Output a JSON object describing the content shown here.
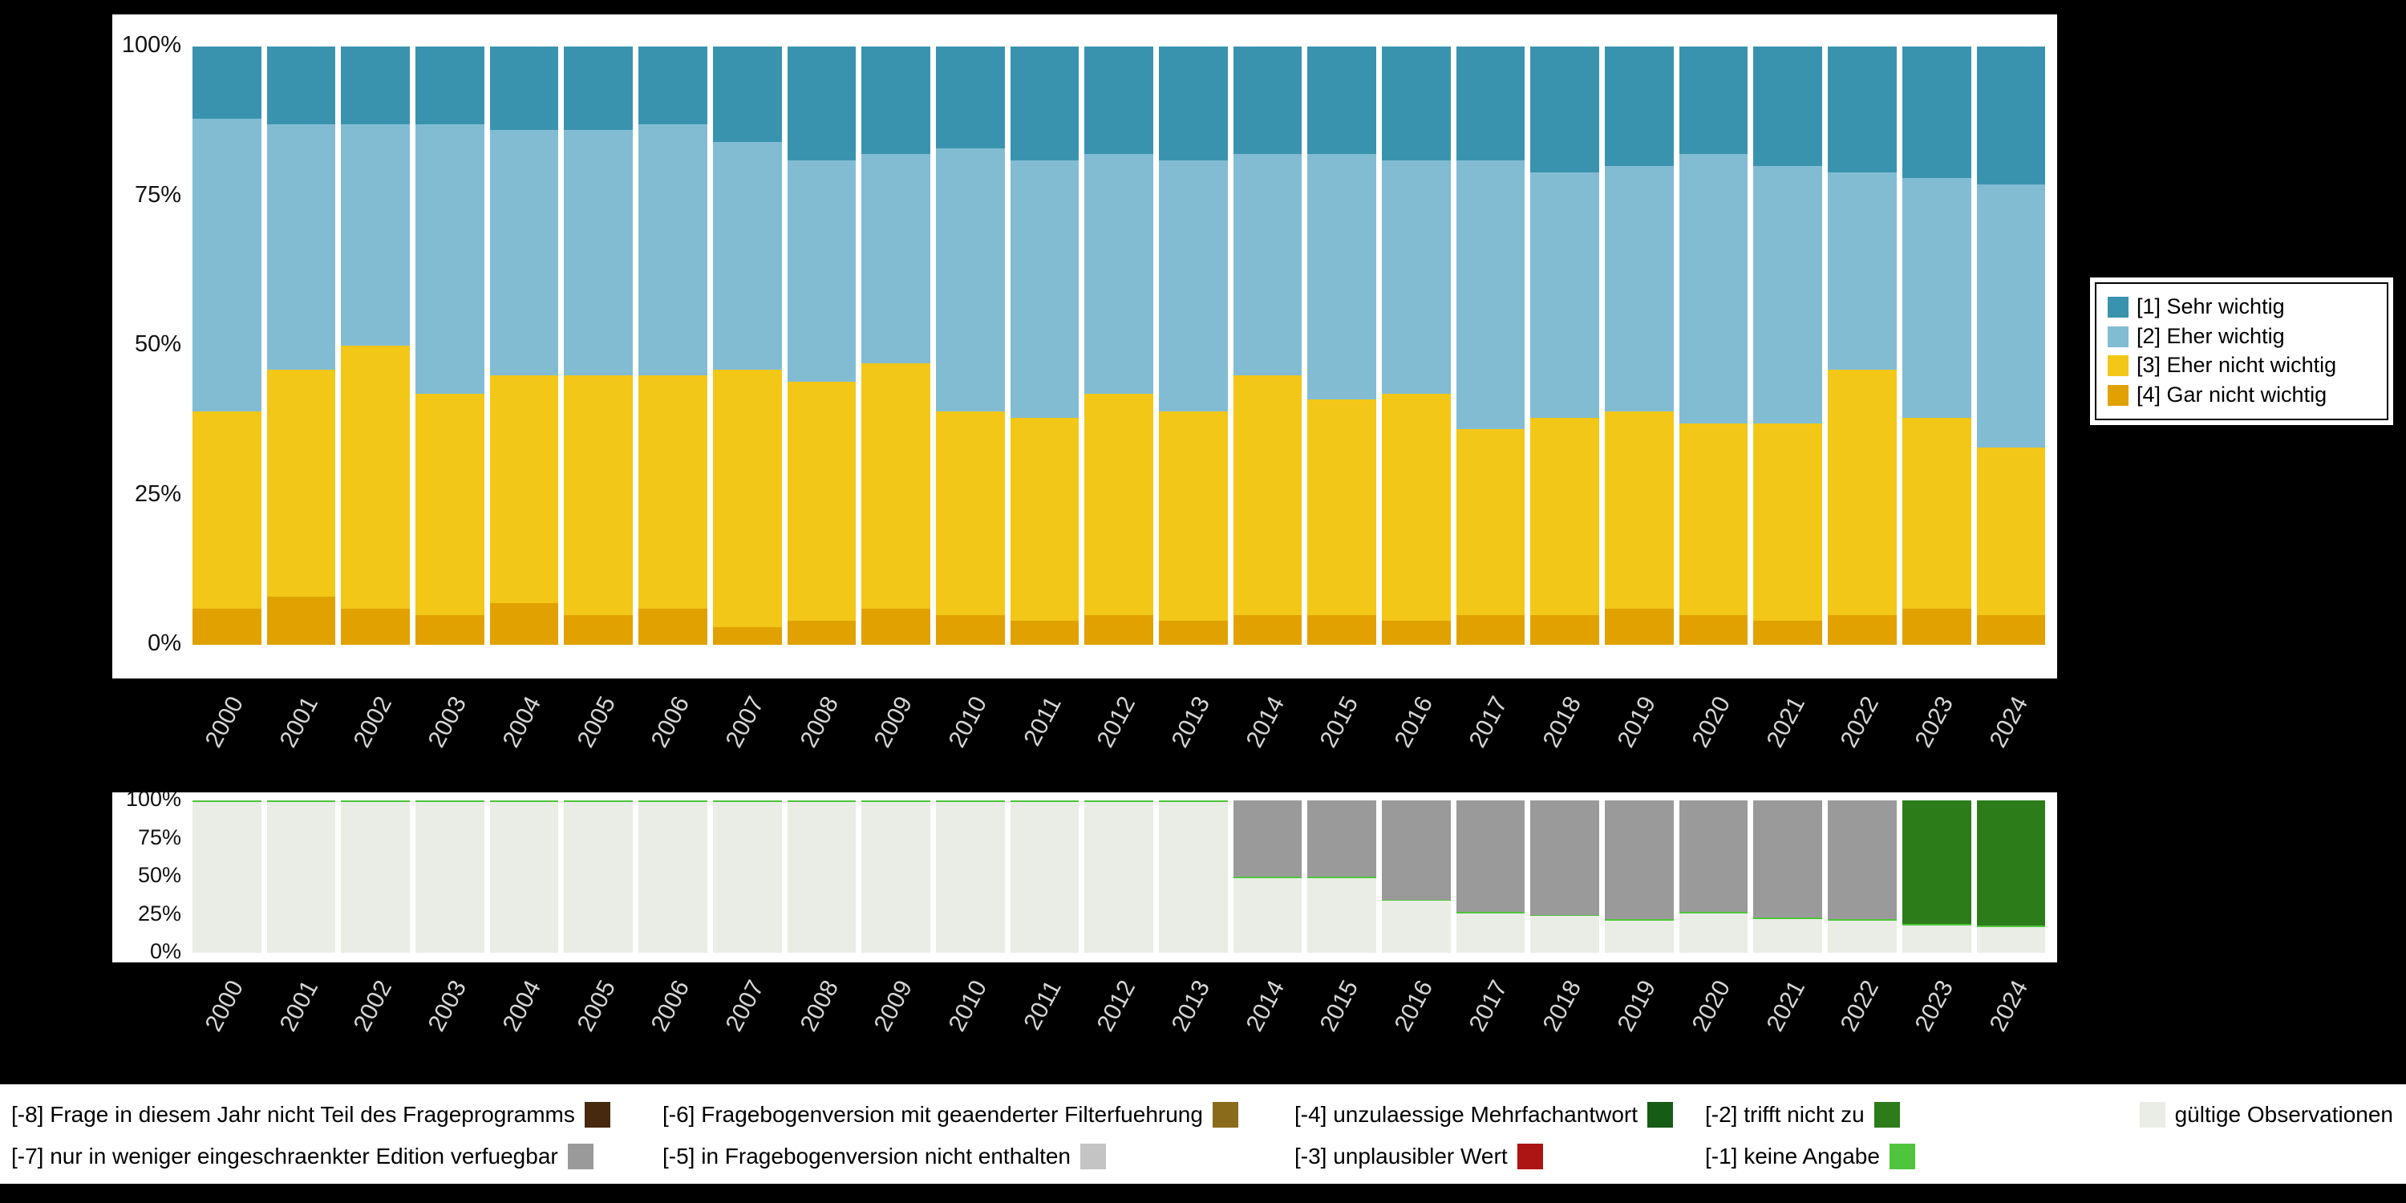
{
  "colors": {
    "background": "#000000",
    "panel": "#ffffff",
    "axis_year_text": "#d5d5d5",
    "axis_tick_text": "#111111",
    "sehr_wichtig": "#3a93ae",
    "eher_wichtig": "#82bcd3",
    "eher_nicht_wichtig": "#f2c718",
    "gar_nicht_wichtig": "#e1a100",
    "valid": "#e9ede5",
    "m8": "#47290f",
    "m7": "#9a9a9a",
    "m6": "#8a6b1c",
    "m5": "#c4c4c4",
    "m4": "#165b16",
    "m3": "#ad1414",
    "m2": "#2c7c19",
    "m1": "#4fc43c"
  },
  "years": [
    "2000",
    "2001",
    "2002",
    "2003",
    "2004",
    "2005",
    "2006",
    "2007",
    "2008",
    "2009",
    "2010",
    "2011",
    "2012",
    "2013",
    "2014",
    "2015",
    "2016",
    "2017",
    "2018",
    "2019",
    "2020",
    "2021",
    "2022",
    "2023",
    "2024"
  ],
  "chart_data": [
    {
      "type": "bar",
      "stacked": true,
      "title": "",
      "xlabel": "",
      "ylabel": "",
      "ylim": [
        0,
        100
      ],
      "grid": false,
      "legend_position": "right",
      "yticks": [
        "0%",
        "25%",
        "50%",
        "75%",
        "100%"
      ],
      "categories": [
        "2000",
        "2001",
        "2002",
        "2003",
        "2004",
        "2005",
        "2006",
        "2007",
        "2008",
        "2009",
        "2010",
        "2011",
        "2012",
        "2013",
        "2014",
        "2015",
        "2016",
        "2017",
        "2018",
        "2019",
        "2020",
        "2021",
        "2022",
        "2023",
        "2024"
      ],
      "series": [
        {
          "name": "[4] Gar nicht wichtig",
          "color_key": "gar_nicht_wichtig",
          "values": [
            6,
            8,
            6,
            5,
            7,
            5,
            6,
            3,
            4,
            6,
            5,
            4,
            5,
            4,
            5,
            5,
            4,
            5,
            5,
            6,
            5,
            4,
            5,
            6,
            5
          ]
        },
        {
          "name": "[3] Eher nicht wichtig",
          "color_key": "eher_nicht_wichtig",
          "values": [
            33,
            38,
            44,
            37,
            38,
            40,
            39,
            43,
            40,
            41,
            34,
            34,
            37,
            35,
            40,
            36,
            38,
            31,
            33,
            33,
            32,
            33,
            41,
            32,
            28
          ]
        },
        {
          "name": "[2] Eher wichtig",
          "color_key": "eher_wichtig",
          "values": [
            49,
            41,
            37,
            45,
            41,
            41,
            42,
            38,
            37,
            35,
            44,
            43,
            40,
            42,
            37,
            41,
            39,
            45,
            41,
            41,
            45,
            43,
            33,
            40,
            44
          ]
        },
        {
          "name": "[1] Sehr wichtig",
          "color_key": "sehr_wichtig",
          "values": [
            12,
            13,
            13,
            13,
            14,
            14,
            13,
            16,
            19,
            18,
            17,
            19,
            18,
            19,
            18,
            18,
            19,
            19,
            21,
            20,
            18,
            20,
            21,
            22,
            23
          ]
        }
      ]
    },
    {
      "type": "bar",
      "stacked": true,
      "title": "",
      "xlabel": "",
      "ylabel": "",
      "ylim": [
        0,
        100
      ],
      "grid": false,
      "legend_position": "bottom",
      "yticks": [
        "0%",
        "25%",
        "50%",
        "75%",
        "100%"
      ],
      "categories": [
        "2000",
        "2001",
        "2002",
        "2003",
        "2004",
        "2005",
        "2006",
        "2007",
        "2008",
        "2009",
        "2010",
        "2011",
        "2012",
        "2013",
        "2014",
        "2015",
        "2016",
        "2017",
        "2018",
        "2019",
        "2020",
        "2021",
        "2022",
        "2023",
        "2024"
      ],
      "series": [
        {
          "name": "gültige Observationen",
          "color_key": "valid",
          "values": [
            99,
            99,
            99,
            99,
            99,
            99,
            99,
            99,
            99,
            99,
            99,
            99,
            99,
            99,
            49,
            49,
            34,
            26,
            24,
            21,
            26,
            22,
            21,
            18,
            17
          ]
        },
        {
          "name": "[-1] keine Angabe",
          "color_key": "m1",
          "values": [
            1,
            1,
            1,
            1,
            1,
            1,
            1,
            1,
            1,
            1,
            1,
            1,
            1,
            1,
            1,
            1,
            1,
            1,
            1,
            1,
            1,
            1,
            1,
            1,
            1
          ]
        },
        {
          "name": "[-7] nur in weniger eingeschraenkter Edition verfuegbar",
          "color_key": "m7",
          "values": [
            0,
            0,
            0,
            0,
            0,
            0,
            0,
            0,
            0,
            0,
            0,
            0,
            0,
            0,
            50,
            50,
            65,
            73,
            75,
            78,
            73,
            77,
            78,
            0,
            0
          ]
        },
        {
          "name": "[-2] trifft nicht zu",
          "color_key": "m2",
          "values": [
            0,
            0,
            0,
            0,
            0,
            0,
            0,
            0,
            0,
            0,
            0,
            0,
            0,
            0,
            0,
            0,
            0,
            0,
            0,
            0,
            0,
            0,
            0,
            81,
            82
          ]
        }
      ]
    }
  ],
  "legend_top": {
    "items": [
      {
        "label": "[1] Sehr wichtig",
        "color_key": "sehr_wichtig"
      },
      {
        "label": "[2] Eher wichtig",
        "color_key": "eher_wichtig"
      },
      {
        "label": "[3] Eher nicht wichtig",
        "color_key": "eher_nicht_wichtig"
      },
      {
        "label": "[4] Gar nicht wichtig",
        "color_key": "gar_nicht_wichtig"
      }
    ]
  },
  "legend_bottom": {
    "items": [
      {
        "label": "[-8] Frage in diesem Jahr nicht Teil des Frageprogramms",
        "color_key": "m8",
        "col": 1,
        "row": 1
      },
      {
        "label": "[-7] nur in weniger eingeschraenkter Edition verfuegbar",
        "color_key": "m7",
        "col": 1,
        "row": 2
      },
      {
        "label": "[-6] Fragebogenversion mit geaenderter Filterfuehrung",
        "color_key": "m6",
        "col": 2,
        "row": 1
      },
      {
        "label": "[-5] in Fragebogenversion nicht enthalten",
        "color_key": "m5",
        "col": 2,
        "row": 2
      },
      {
        "label": "[-4] unzulaessige Mehrfachantwort",
        "color_key": "m4",
        "col": 3,
        "row": 1
      },
      {
        "label": "[-3] unplausibler Wert",
        "color_key": "m3",
        "col": 3,
        "row": 2
      },
      {
        "label": "[-2] trifft nicht zu",
        "color_key": "m2",
        "col": 4,
        "row": 1
      },
      {
        "label": "[-1] keine Angabe",
        "color_key": "m1",
        "col": 4,
        "row": 2
      },
      {
        "label": "gültige Observationen",
        "color_key": "valid",
        "col": 5,
        "row": 1,
        "swatch_first": true
      }
    ]
  }
}
